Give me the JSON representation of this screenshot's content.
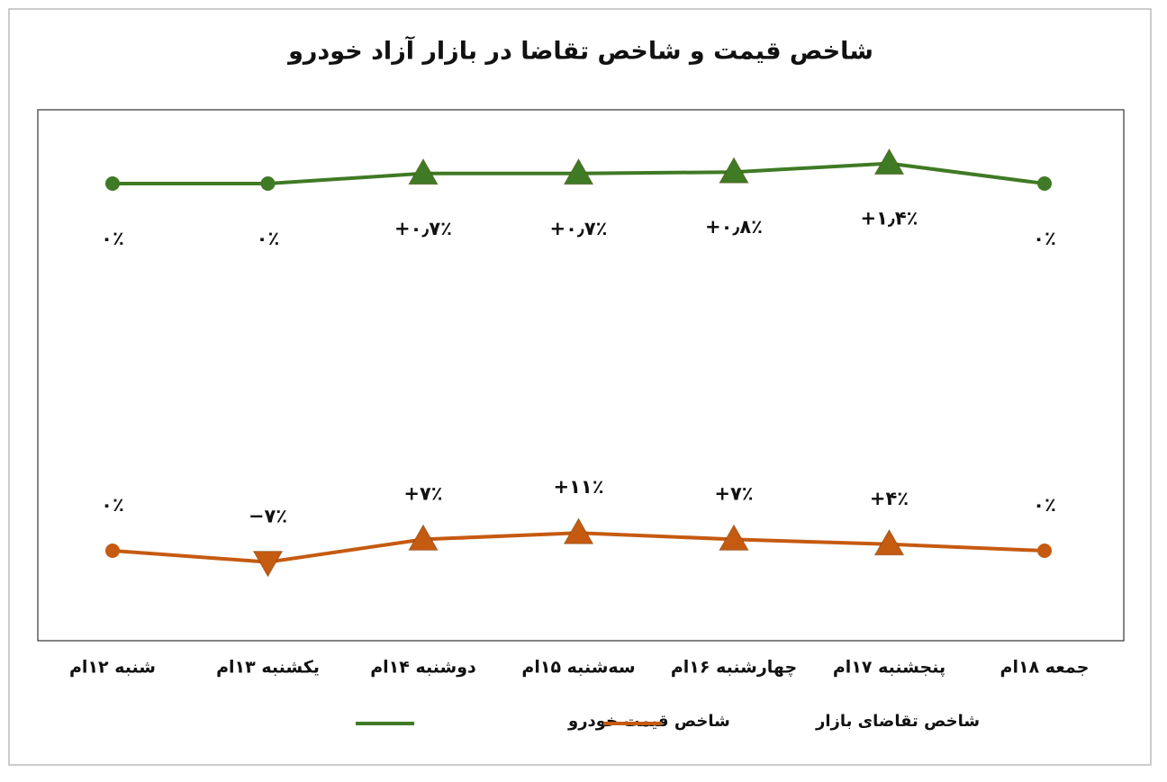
{
  "chart_data": {
    "type": "line",
    "title": "شاخص قیمت و شاخص تقاضا در بازار آزاد خودرو",
    "categories": [
      "شنبه ۱۲ام",
      "یکشنبه ۱۳ام",
      "دوشنبه ۱۴ام",
      "سه‌شنبه ۱۵ام",
      "چهارشنبه ۱۶ام",
      "پنجشنبه ۱۷ام",
      "جمعه ۱۸ام"
    ],
    "series": [
      {
        "name": "شاخص قیمت خودرو",
        "color": "#3f7a24",
        "values": [
          0,
          0,
          0.7,
          0.7,
          0.8,
          1.4,
          0
        ],
        "value_labels": [
          "۰٪",
          "۰٪",
          "+۰٫۷٪",
          "+۰٫۷٪",
          "+۰٫۸٪",
          "+۱٫۴٪",
          "۰٪"
        ]
      },
      {
        "name": "شاخص تقاضای بازار",
        "color": "#c55a11",
        "values": [
          0,
          -7,
          7,
          11,
          7,
          4,
          0
        ],
        "value_labels": [
          "۰٪",
          "−۷٪",
          "+۷٪",
          "+۱۱٪",
          "+۷٪",
          "+۴٪",
          "۰٪"
        ]
      }
    ]
  }
}
